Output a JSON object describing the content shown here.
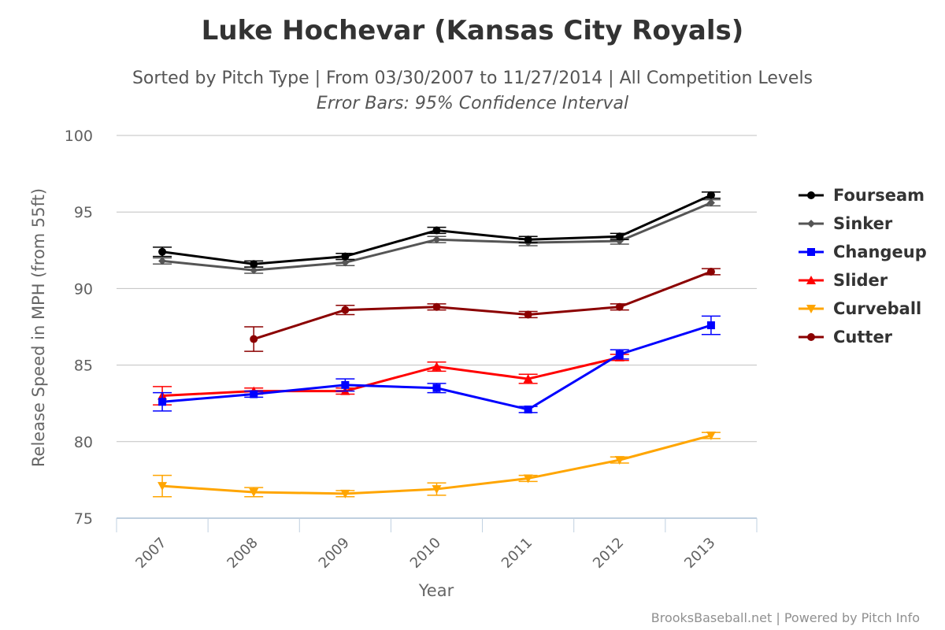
{
  "chart_data": {
    "type": "line",
    "title": "Luke Hochevar (Kansas City Royals)",
    "subtitle": "Sorted by Pitch Type | From 03/30/2007 to 11/27/2014 | All Competition Levels",
    "subtitle2": "Error Bars: 95% Confidence Interval",
    "xlabel": "Year",
    "ylabel": "Release Speed in MPH (from 55ft)",
    "categories": [
      "2007",
      "2008",
      "2009",
      "2010",
      "2011",
      "2012",
      "2013"
    ],
    "ylim": [
      75,
      100
    ],
    "yticks": [
      75,
      80,
      85,
      90,
      95,
      100
    ],
    "grid": true,
    "legend_position": "right",
    "credit": "BrooksBaseball.net | Powered by Pitch Info",
    "series": [
      {
        "name": "Fourseam",
        "color": "#000000",
        "marker": "circle",
        "values": [
          92.4,
          91.6,
          92.1,
          93.8,
          93.2,
          93.4,
          96.1
        ],
        "error": [
          [
            92.1,
            92.7
          ],
          [
            91.4,
            91.8
          ],
          [
            91.9,
            92.3
          ],
          [
            93.6,
            94.0
          ],
          [
            93.0,
            93.4
          ],
          [
            93.2,
            93.6
          ],
          [
            95.9,
            96.3
          ]
        ]
      },
      {
        "name": "Sinker",
        "color": "#555555",
        "marker": "diamond",
        "values": [
          91.8,
          91.2,
          91.7,
          93.2,
          93.0,
          93.1,
          95.6
        ],
        "error": [
          [
            91.6,
            92.0
          ],
          [
            91.0,
            91.4
          ],
          [
            91.5,
            91.9
          ],
          [
            93.0,
            93.4
          ],
          [
            92.8,
            93.2
          ],
          [
            92.9,
            93.3
          ],
          [
            95.4,
            95.8
          ]
        ]
      },
      {
        "name": "Changeup",
        "color": "#0000ff",
        "marker": "square",
        "values": [
          82.6,
          83.1,
          83.7,
          83.5,
          82.1,
          85.7,
          87.6
        ],
        "error": [
          [
            82.0,
            83.2
          ],
          [
            82.9,
            83.3
          ],
          [
            83.3,
            84.1
          ],
          [
            83.2,
            83.8
          ],
          [
            81.9,
            82.3
          ],
          [
            85.4,
            86.0
          ],
          [
            87.0,
            88.2
          ]
        ]
      },
      {
        "name": "Slider",
        "color": "#ff0000",
        "marker": "triangle",
        "values": [
          83.0,
          83.3,
          83.3,
          84.9,
          84.1,
          85.5,
          null
        ],
        "error": [
          [
            82.4,
            83.6
          ],
          [
            83.1,
            83.5
          ],
          [
            83.1,
            83.5
          ],
          [
            84.6,
            85.2
          ],
          [
            83.8,
            84.4
          ],
          [
            85.3,
            85.7
          ],
          null
        ]
      },
      {
        "name": "Curveball",
        "color": "#ffa500",
        "marker": "triangle-down",
        "values": [
          77.1,
          76.7,
          76.6,
          76.9,
          77.6,
          78.8,
          80.4
        ],
        "error": [
          [
            76.4,
            77.8
          ],
          [
            76.4,
            77.0
          ],
          [
            76.4,
            76.8
          ],
          [
            76.5,
            77.3
          ],
          [
            77.4,
            77.8
          ],
          [
            78.6,
            79.0
          ],
          [
            80.2,
            80.6
          ]
        ]
      },
      {
        "name": "Cutter",
        "color": "#8b0000",
        "marker": "circle",
        "values": [
          null,
          86.7,
          88.6,
          88.8,
          88.3,
          88.8,
          91.1
        ],
        "error": [
          null,
          [
            85.9,
            87.5
          ],
          [
            88.3,
            88.9
          ],
          [
            88.6,
            89.0
          ],
          [
            88.1,
            88.5
          ],
          [
            88.6,
            89.0
          ],
          [
            90.9,
            91.3
          ]
        ]
      }
    ]
  }
}
